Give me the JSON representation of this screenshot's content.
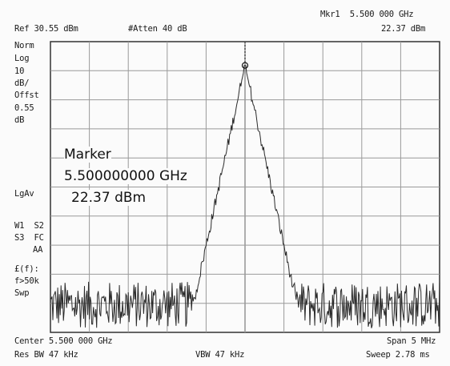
{
  "header": {
    "marker_readout": "Mkr1  5.500 000 GHz",
    "ref_level": "Ref 30.55 dBm",
    "attenuation": "#Atten 40 dB",
    "marker_amplitude": "22.37 dBm"
  },
  "left_annotations": {
    "detector_mode": "Norm",
    "scale_type": "Log",
    "scale_value": "10",
    "scale_unit": "dB/",
    "offset_label": "Offst",
    "offset_value": "0.55",
    "offset_unit": "dB",
    "averaging": "LgAv",
    "traces_line1": "W1  S2",
    "traces_line2": "S3  FC",
    "traces_line3": "AA",
    "freq_corr_line1": "£(f):",
    "freq_corr_line2": "f>50k",
    "sweep_type": "Swp"
  },
  "marker_box": {
    "title": "Marker",
    "frequency": "5.500000000 GHz",
    "amplitude": "22.37 dBm"
  },
  "footer": {
    "center": "Center 5.500 000 GHz",
    "span": "Span 5 MHz",
    "rbw": "Res BW 47 kHz",
    "vbw": "VBW 47 kHz",
    "sweep": "Sweep 2.78 ms"
  },
  "chart_data": {
    "type": "line",
    "x_range_mhz": [
      5497.5,
      5502.5
    ],
    "y_range_dbm": [
      -69.45,
      30.55
    ],
    "divisions": {
      "x": 10,
      "y": 10
    },
    "grid": true,
    "peak": {
      "x_mhz": 5500.0,
      "y_dbm": 22.37
    },
    "noise_floor_dbm": -60,
    "colors": {
      "trace": "#2a2a2a",
      "grid": "#9a9a9a",
      "border": "#333333"
    }
  }
}
